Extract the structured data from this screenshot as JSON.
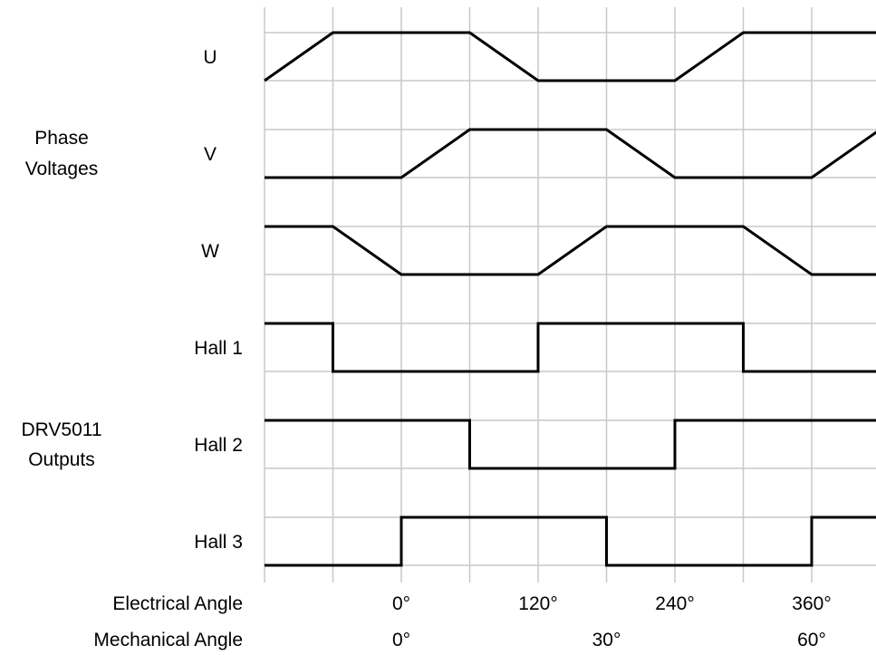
{
  "group_labels": {
    "phase_line1": "Phase",
    "phase_line2": "Voltages",
    "drv_line1": "DRV5011",
    "drv_line2": "Outputs"
  },
  "row_labels": {
    "u": "U",
    "v": "V",
    "w": "W",
    "hall1": "Hall 1",
    "hall2": "Hall 2",
    "hall3": "Hall 3"
  },
  "axis_titles": {
    "electrical": "Electrical Angle",
    "mechanical": "Mechanical Angle"
  },
  "electrical_ticks": [
    "0°",
    "120°",
    "240°",
    "360°"
  ],
  "mechanical_ticks": [
    "0°",
    "30°",
    "60°"
  ],
  "colors": {
    "signal": "#000000",
    "grid": "#c8c8c8"
  },
  "chart_data": {
    "type": "timing-diagram",
    "x_unit": "electrical degrees",
    "x_range": [
      -120,
      420
    ],
    "electrical_ticks": [
      0,
      120,
      240,
      360
    ],
    "mechanical_ticks": [
      0,
      30,
      60
    ],
    "signals": [
      {
        "label": "U",
        "kind": "trapezoid",
        "points": [
          [
            -120,
            0
          ],
          [
            -60,
            1
          ],
          [
            60,
            1
          ],
          [
            120,
            0
          ],
          [
            240,
            0
          ],
          [
            300,
            1
          ],
          [
            420,
            1
          ]
        ]
      },
      {
        "label": "V",
        "kind": "trapezoid",
        "points": [
          [
            -120,
            0
          ],
          [
            0,
            0
          ],
          [
            60,
            1
          ],
          [
            180,
            1
          ],
          [
            240,
            0
          ],
          [
            360,
            0
          ],
          [
            420,
            1
          ]
        ]
      },
      {
        "label": "W",
        "kind": "trapezoid",
        "points": [
          [
            -120,
            1
          ],
          [
            -60,
            1
          ],
          [
            0,
            0
          ],
          [
            120,
            0
          ],
          [
            180,
            1
          ],
          [
            300,
            1
          ],
          [
            360,
            0
          ],
          [
            420,
            0
          ]
        ]
      },
      {
        "label": "Hall 1",
        "kind": "digital",
        "points": [
          [
            -120,
            1
          ],
          [
            -60,
            1
          ],
          [
            -60,
            0
          ],
          [
            120,
            0
          ],
          [
            120,
            1
          ],
          [
            300,
            1
          ],
          [
            300,
            0
          ],
          [
            420,
            0
          ]
        ]
      },
      {
        "label": "Hall 2",
        "kind": "digital",
        "points": [
          [
            -120,
            1
          ],
          [
            60,
            1
          ],
          [
            60,
            0
          ],
          [
            240,
            0
          ],
          [
            240,
            1
          ],
          [
            420,
            1
          ]
        ]
      },
      {
        "label": "Hall 3",
        "kind": "digital",
        "points": [
          [
            -120,
            0
          ],
          [
            0,
            0
          ],
          [
            0,
            1
          ],
          [
            180,
            1
          ],
          [
            180,
            0
          ],
          [
            360,
            0
          ],
          [
            360,
            1
          ],
          [
            420,
            1
          ]
        ]
      }
    ]
  }
}
